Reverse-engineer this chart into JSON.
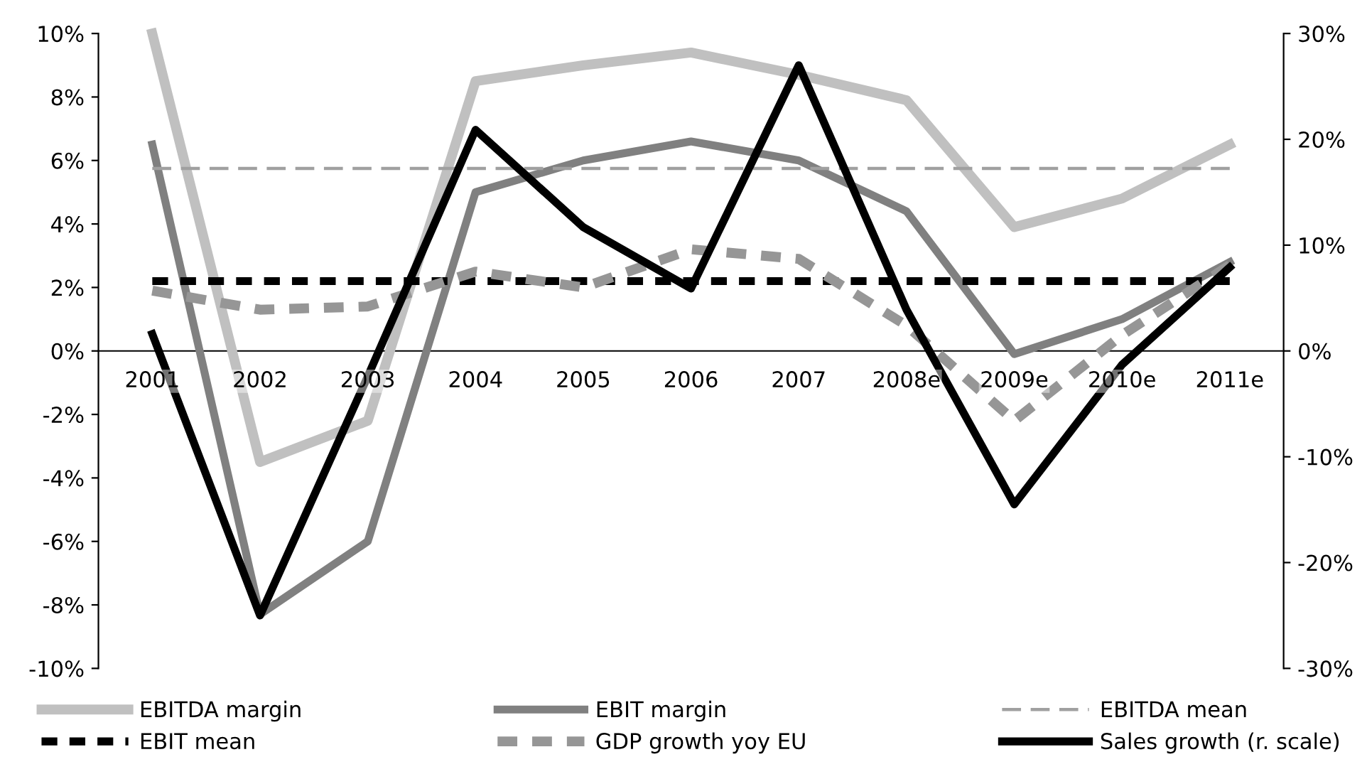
{
  "chart_data": {
    "type": "line",
    "categories": [
      "2001",
      "2002",
      "2003",
      "2004",
      "2005",
      "2006",
      "2007",
      "2008e",
      "2009e",
      "2010e",
      "2011e"
    ],
    "series": [
      {
        "name": "EBITDA margin",
        "color": "#c0c0c0",
        "line_style": "solid",
        "values": [
          10.0,
          -3.5,
          -2.2,
          8.5,
          9.0,
          9.4,
          8.7,
          7.9,
          3.9,
          4.8,
          6.5
        ]
      },
      {
        "name": "EBIT margin",
        "color": "#808080",
        "line_style": "solid",
        "values": [
          6.5,
          -8.3,
          -6.0,
          5.0,
          6.0,
          6.6,
          6.0,
          4.4,
          -0.1,
          1.0,
          2.8
        ]
      },
      {
        "name": "EBITDA mean",
        "color": "#a0a0a0",
        "line_style": "dashed",
        "values": [
          5.75,
          5.75,
          5.75,
          5.75,
          5.75,
          5.75,
          5.75,
          5.75,
          5.75,
          5.75,
          5.75
        ]
      },
      {
        "name": "EBIT mean",
        "color": "#000000",
        "line_style": "dashed",
        "values": [
          2.2,
          2.2,
          2.2,
          2.2,
          2.2,
          2.2,
          2.2,
          2.2,
          2.2,
          2.2,
          2.2
        ]
      },
      {
        "name": "GDP growth yoy EU",
        "color": "#969696",
        "line_style": "dashed",
        "values": [
          1.9,
          1.3,
          1.4,
          2.5,
          2.0,
          3.2,
          2.9,
          0.8,
          -2.2,
          0.5,
          2.7
        ]
      },
      {
        "name": "Sales growth (r. scale)",
        "color": "#000000",
        "line_style": "solid",
        "axis": "y2",
        "values": [
          1.6,
          -25,
          -2.4,
          20.9,
          11.7,
          5.9,
          27,
          3.9,
          -14.5,
          -1.3,
          7.9
        ]
      }
    ],
    "ylim": [
      -10,
      10
    ],
    "yticks": [
      {
        "value": -10,
        "label": "-10%"
      },
      {
        "value": -8,
        "label": "-8%"
      },
      {
        "value": -6,
        "label": "-6%"
      },
      {
        "value": -4,
        "label": "-4%"
      },
      {
        "value": -2,
        "label": "-2%"
      },
      {
        "value": 0,
        "label": "0%"
      },
      {
        "value": 2,
        "label": "2%"
      },
      {
        "value": 4,
        "label": "4%"
      },
      {
        "value": 6,
        "label": "6%"
      },
      {
        "value": 8,
        "label": "8%"
      },
      {
        "value": 10,
        "label": "10%"
      }
    ],
    "y2lim": [
      -30,
      30
    ],
    "y2ticks": [
      {
        "value": -30,
        "label": "-30%"
      },
      {
        "value": -20,
        "label": "-20%"
      },
      {
        "value": -10,
        "label": "-10%"
      },
      {
        "value": 0,
        "label": "0%"
      },
      {
        "value": 10,
        "label": "10%"
      },
      {
        "value": 20,
        "label": "20%"
      },
      {
        "value": 30,
        "label": "30%"
      }
    ],
    "grid": false,
    "legend": "bottom"
  }
}
